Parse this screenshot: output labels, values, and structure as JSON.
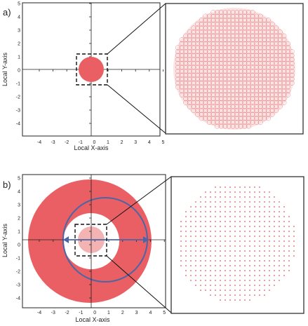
{
  "panel_a": {
    "label": "a)",
    "xlabel": "Local X-axis",
    "ylabel": "Local Y-axis",
    "x_ticks": [
      "-4",
      "-3",
      "-2",
      "-1",
      "0",
      "1",
      "2",
      "3",
      "4",
      "5"
    ],
    "y_ticks": [
      "5",
      "4",
      "3",
      "2",
      "1",
      "0",
      "-1",
      "-2",
      "-3",
      "-4"
    ],
    "shape": "solid-disk",
    "disk_radius": 1,
    "zoom_box": [
      -1.2,
      1.2,
      -1.2,
      1.2
    ],
    "inset_pattern": "dense-circle-mesh"
  },
  "panel_b": {
    "label": "b)",
    "xlabel": "Local X-axis",
    "ylabel": "Local Y-axis",
    "x_ticks": [
      "-4",
      "-3",
      "-2",
      "-1",
      "0",
      "1",
      "2",
      "3",
      "4",
      "5"
    ],
    "y_ticks": [
      "5",
      "4",
      "3",
      "2",
      "1",
      "0",
      "-1",
      "-2",
      "-3",
      "-4"
    ],
    "shape": "annulus-with-inner-disk",
    "annulus_inner_radius": 2.2,
    "annulus_outer_radius": 4.8,
    "circle_radius": 3.2,
    "arrow_from": -2.2,
    "arrow_to": 4.0,
    "zoom_box": [
      -1.2,
      1.2,
      -1.2,
      1.2
    ],
    "inset_pattern": "sparse-dot-grid"
  },
  "colors": {
    "fill": "#e95f63",
    "fill_light": "#f3b3b3",
    "mesh": "#e05a5e",
    "circle_line": "#4a66a6",
    "frame": "#222222"
  }
}
